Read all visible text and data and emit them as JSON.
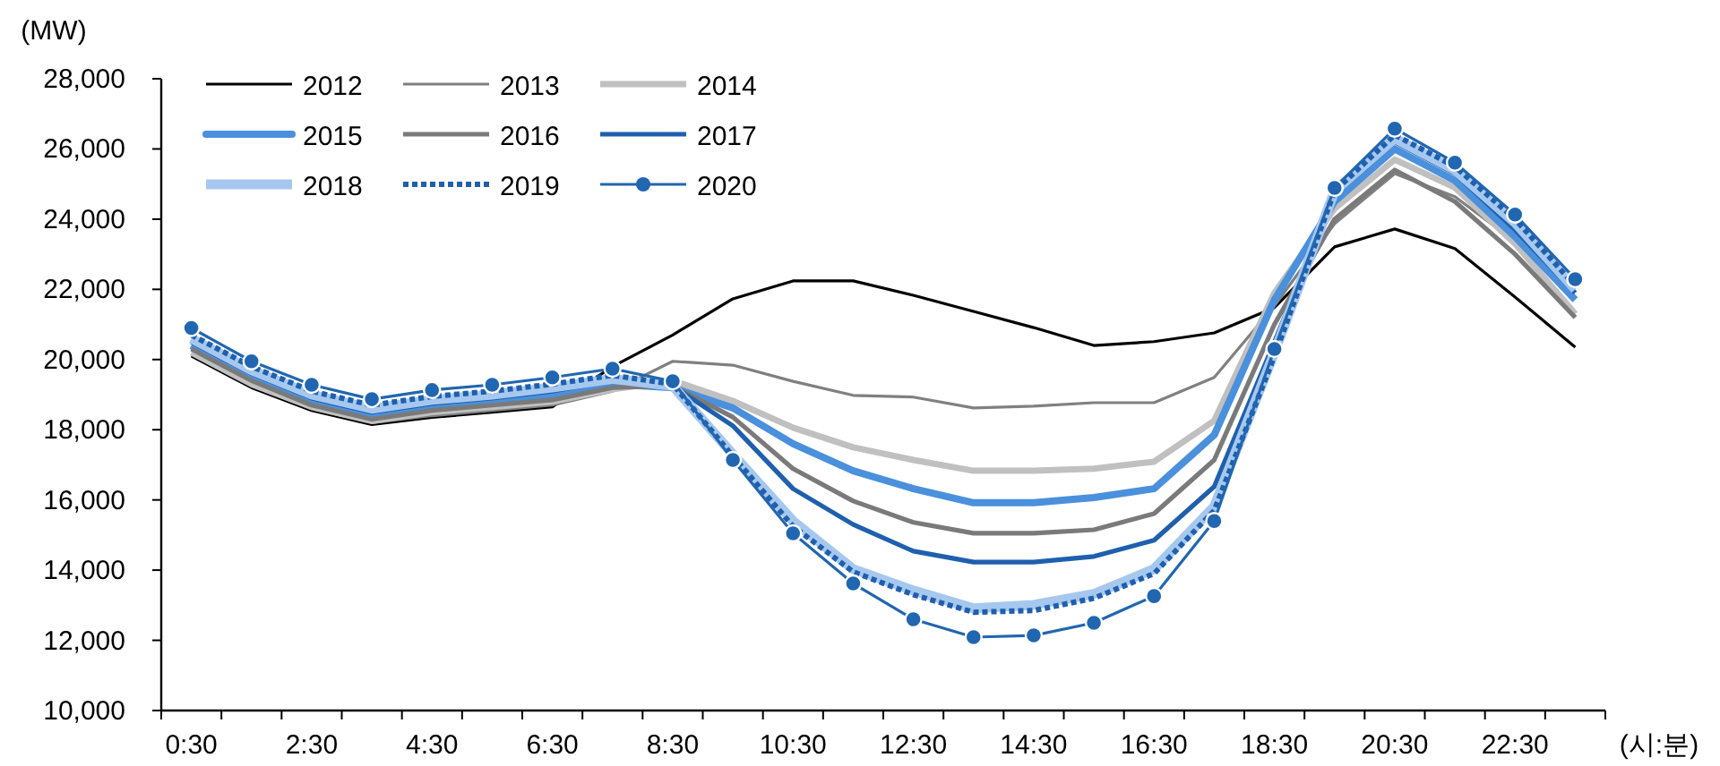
{
  "chart_data": {
    "type": "line",
    "ylabel": "(MW)",
    "xlabel": "(시:분)",
    "categories": [
      "0:30",
      null,
      "2:30",
      null,
      "4:30",
      null,
      "6:30",
      null,
      "8:30",
      null,
      "10:30",
      null,
      "12:30",
      null,
      "14:30",
      null,
      "16:30",
      null,
      "18:30",
      null,
      "20:30",
      null,
      "22:30",
      null
    ],
    "ylim": [
      10000,
      28000
    ],
    "yticks": [
      {
        "value": 10000,
        "label": "10,000"
      },
      {
        "value": 12000,
        "label": "12,000"
      },
      {
        "value": 14000,
        "label": "14,000"
      },
      {
        "value": 16000,
        "label": "16,000"
      },
      {
        "value": 18000,
        "label": "18,000"
      },
      {
        "value": 20000,
        "label": "20,000"
      },
      {
        "value": 22000,
        "label": "22,000"
      },
      {
        "value": 24000,
        "label": "24,000"
      },
      {
        "value": 26000,
        "label": "26,000"
      },
      {
        "value": 28000,
        "label": "28,000"
      }
    ],
    "grid": false,
    "legend": "top left",
    "series": [
      {
        "name": "2012",
        "color": "#000000",
        "values": [
          20100,
          19200,
          18550,
          18150,
          18350,
          18500,
          18650,
          19800,
          20700,
          21730,
          22240,
          22240,
          21830,
          21370,
          20910,
          20400,
          20510,
          20760,
          21480,
          23210,
          23720,
          23160,
          21780,
          20350
        ]
      },
      {
        "name": "2013",
        "color": "#808080",
        "values": [
          20300,
          19250,
          18600,
          18200,
          18400,
          18550,
          18700,
          19100,
          19950,
          19840,
          19380,
          18980,
          18930,
          18620,
          18670,
          18770,
          18770,
          19490,
          21530,
          23870,
          25300,
          24640,
          23360,
          21220
        ]
      },
      {
        "name": "2014",
        "color": "#c0c0c0",
        "values": [
          20200,
          19300,
          18650,
          18250,
          18500,
          18650,
          18800,
          19150,
          19400,
          18820,
          18060,
          17500,
          17140,
          16830,
          16830,
          16890,
          17090,
          18260,
          21900,
          24300,
          25700,
          24900,
          23300,
          21300
        ]
      },
      {
        "name": "2015",
        "color": "#4a90dc",
        "values": [
          20400,
          19500,
          18800,
          18400,
          18650,
          18800,
          19000,
          19300,
          19200,
          18620,
          17600,
          16830,
          16320,
          15920,
          15920,
          16070,
          16320,
          17850,
          21700,
          24500,
          26000,
          25100,
          23500,
          21700
        ]
      },
      {
        "name": "2016",
        "color": "#7a7a7a",
        "values": [
          20300,
          19400,
          18700,
          18300,
          18550,
          18700,
          18850,
          19200,
          19250,
          18360,
          16890,
          15970,
          15360,
          15050,
          15050,
          15150,
          15610,
          17140,
          21000,
          24000,
          25400,
          24500,
          23000,
          21200
        ]
      },
      {
        "name": "2017",
        "color": "#1f5fae",
        "values": [
          20500,
          19600,
          18900,
          18500,
          18750,
          18900,
          19100,
          19400,
          19250,
          18110,
          16320,
          15300,
          14540,
          14230,
          14230,
          14390,
          14850,
          16380,
          20500,
          24700,
          26200,
          25300,
          23700,
          21900
        ]
      },
      {
        "name": "2018",
        "color": "#a6c8ef",
        "values": [
          20600,
          19700,
          19000,
          18600,
          18850,
          19000,
          19200,
          19450,
          19250,
          17300,
          15400,
          14030,
          13420,
          12910,
          13010,
          13320,
          14030,
          15810,
          20200,
          24800,
          26300,
          25400,
          23900,
          22000
        ]
      },
      {
        "name": "2019",
        "color": "#1f5fae",
        "line_style": "dotted",
        "values": [
          20700,
          19800,
          19100,
          18700,
          18950,
          19100,
          19300,
          19550,
          19300,
          17250,
          15250,
          13950,
          13300,
          12800,
          12850,
          13200,
          13900,
          15700,
          20100,
          24800,
          26400,
          25500,
          24000,
          22100
        ]
      },
      {
        "name": "2020",
        "color": "#2166b0",
        "marker": "circle",
        "values": [
          20900,
          19950,
          19280,
          18870,
          19130,
          19280,
          19490,
          19740,
          19380,
          17140,
          15050,
          13620,
          12600,
          12090,
          12140,
          12500,
          13260,
          15400,
          20300,
          24890,
          26580,
          25610,
          24130,
          22290
        ]
      }
    ]
  }
}
